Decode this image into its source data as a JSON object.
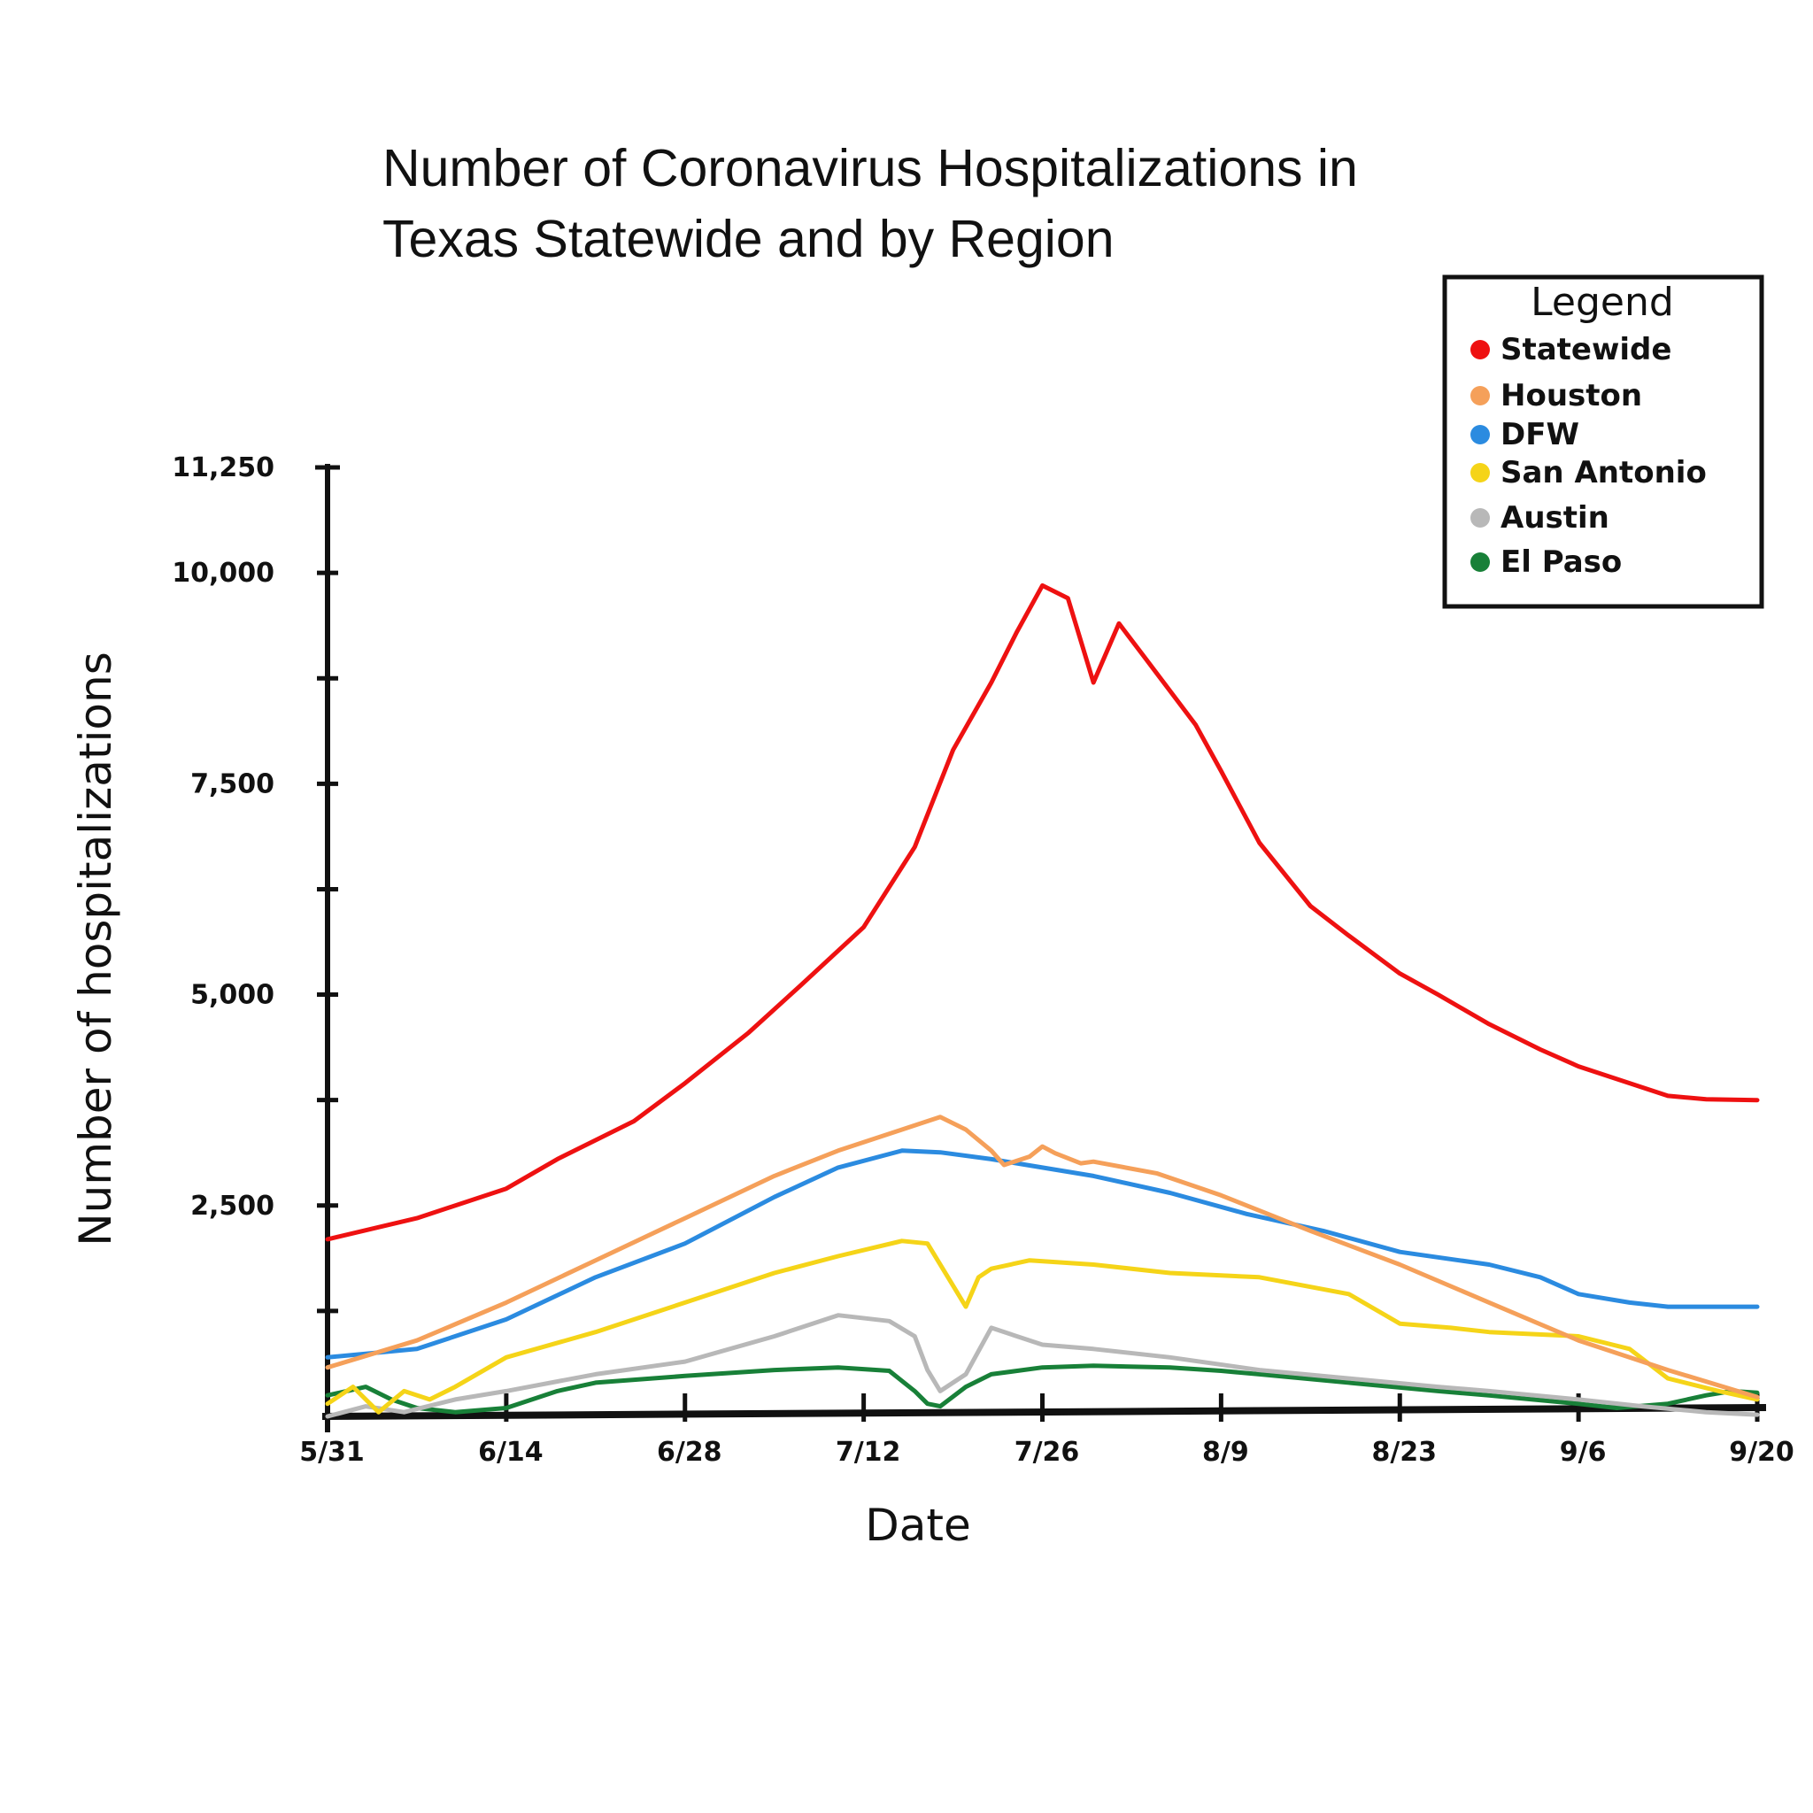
{
  "chart_data": {
    "type": "line",
    "title": "Number of Coronavirus Hospitalizations in Texas Statewide and by Region",
    "title_lines": [
      "Number of Coronavirus Hospitalizations in",
      "Texas Statewide and by Region"
    ],
    "xlabel": "Date",
    "ylabel": "Number of hospitalizations",
    "x_ticks": [
      "5/31",
      "6/14",
      "6/28",
      "7/12",
      "7/26",
      "8/9",
      "8/23",
      "9/6",
      "9/20"
    ],
    "y_ticks": [
      {
        "value": 2500,
        "label": "2,500"
      },
      {
        "value": 5000,
        "label": "5,000"
      },
      {
        "value": 7500,
        "label": "7,500"
      },
      {
        "value": 10000,
        "label": "10,000"
      },
      {
        "value": 11250,
        "label": "11,250"
      }
    ],
    "ylim": [
      0,
      11250
    ],
    "xlim": [
      0,
      112
    ],
    "grid": false,
    "legend": {
      "title": "Legend",
      "placement": "top-right"
    },
    "series": [
      {
        "name": "Statewide",
        "color": "#ee1111",
        "x": [
          0,
          7,
          14,
          18,
          24,
          28,
          33,
          37,
          42,
          46,
          49,
          52,
          54,
          56,
          58,
          60,
          62,
          64,
          66,
          68,
          70,
          73,
          77,
          80,
          84,
          87,
          91,
          95,
          98,
          102,
          105,
          108,
          112
        ],
        "y": [
          2100,
          2350,
          2700,
          3050,
          3500,
          3950,
          4550,
          5100,
          5800,
          6750,
          7900,
          8700,
          9300,
          9850,
          9700,
          8700,
          9400,
          9000,
          8600,
          8200,
          7650,
          6800,
          6050,
          5700,
          5250,
          5000,
          4650,
          4350,
          4150,
          3950,
          3800,
          3760,
          3750
        ]
      },
      {
        "name": "Houston",
        "color": "#f5a05a",
        "x": [
          0,
          7,
          14,
          21,
          28,
          35,
          40,
          45,
          48,
          50,
          52,
          53,
          55,
          56,
          57,
          59,
          60,
          65,
          70,
          77,
          84,
          91,
          98,
          105,
          112
        ],
        "y": [
          580,
          900,
          1350,
          1850,
          2350,
          2850,
          3150,
          3400,
          3550,
          3400,
          3150,
          2980,
          3080,
          3200,
          3120,
          3000,
          3020,
          2880,
          2620,
          2200,
          1800,
          1350,
          900,
          550,
          230
        ]
      },
      {
        "name": "DFW",
        "color": "#2b8be0",
        "x": [
          0,
          7,
          14,
          21,
          28,
          35,
          40,
          45,
          48,
          52,
          56,
          60,
          66,
          72,
          78,
          84,
          91,
          95,
          98,
          102,
          105,
          108,
          112
        ],
        "y": [
          700,
          800,
          1150,
          1650,
          2050,
          2600,
          2950,
          3150,
          3130,
          3050,
          2950,
          2850,
          2650,
          2400,
          2200,
          1950,
          1800,
          1650,
          1450,
          1350,
          1300,
          1300,
          1300
        ]
      },
      {
        "name": "San Antonio",
        "color": "#f5d418",
        "x": [
          0,
          2,
          4,
          6,
          8,
          10,
          14,
          21,
          28,
          35,
          40,
          45,
          47,
          49,
          50,
          51,
          52,
          55,
          60,
          66,
          73,
          80,
          84,
          88,
          91,
          98,
          102,
          105,
          109,
          112
        ],
        "y": [
          150,
          350,
          50,
          300,
          200,
          350,
          700,
          1000,
          1350,
          1700,
          1900,
          2080,
          2050,
          1550,
          1300,
          1650,
          1750,
          1850,
          1800,
          1700,
          1650,
          1450,
          1100,
          1050,
          1000,
          950,
          800,
          450,
          300,
          200
        ]
      },
      {
        "name": "Austin",
        "color": "#b8b8b8",
        "x": [
          0,
          3,
          6,
          10,
          14,
          21,
          28,
          35,
          40,
          44,
          46,
          47,
          48,
          50,
          52,
          56,
          60,
          66,
          73,
          80,
          87,
          91,
          98,
          103,
          108,
          112
        ],
        "y": [
          0,
          120,
          50,
          200,
          300,
          500,
          650,
          950,
          1200,
          1130,
          950,
          550,
          300,
          500,
          1050,
          850,
          800,
          700,
          550,
          450,
          350,
          300,
          200,
          120,
          50,
          20
        ]
      },
      {
        "name": "El Paso",
        "color": "#188038",
        "x": [
          0,
          3,
          5,
          7,
          10,
          14,
          18,
          21,
          28,
          35,
          40,
          44,
          46,
          47,
          48,
          50,
          52,
          56,
          60,
          66,
          70,
          73,
          80,
          87,
          91,
          98,
          101,
          105,
          108,
          110,
          112
        ],
        "y": [
          250,
          350,
          200,
          100,
          50,
          100,
          300,
          400,
          480,
          550,
          580,
          540,
          300,
          150,
          120,
          350,
          500,
          580,
          600,
          580,
          540,
          500,
          400,
          300,
          250,
          150,
          100,
          150,
          250,
          300,
          280
        ]
      }
    ]
  }
}
